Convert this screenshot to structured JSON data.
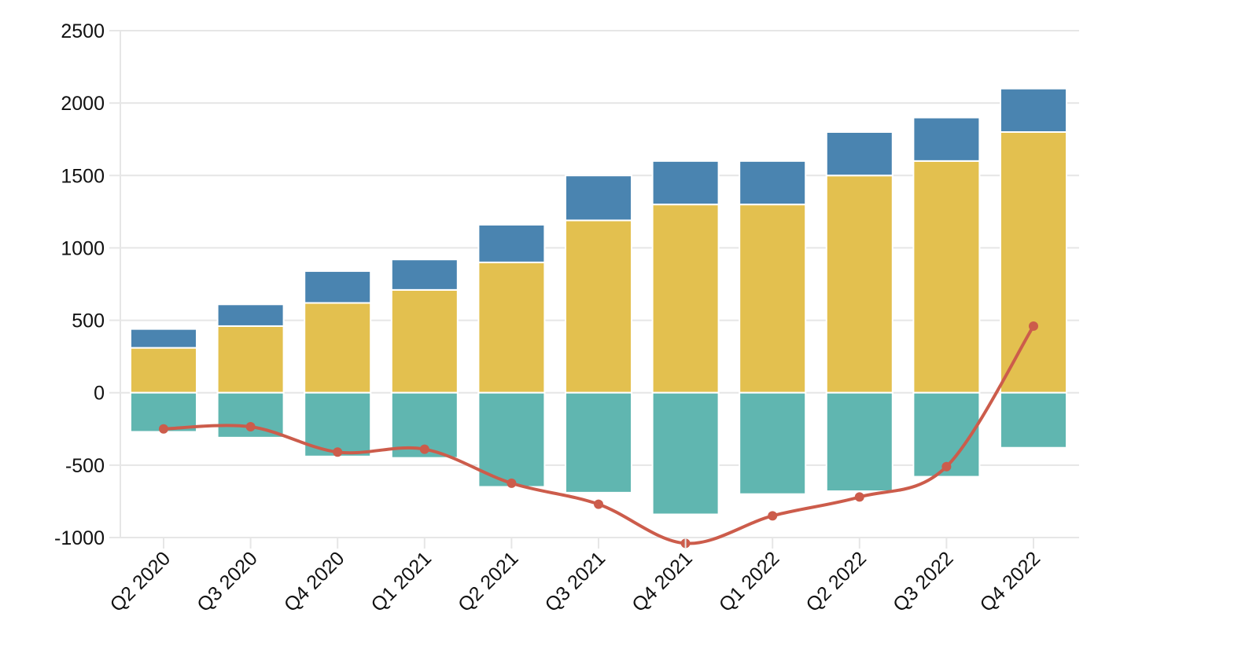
{
  "chart_data": {
    "type": "bar",
    "stacked": true,
    "title": "",
    "xlabel": "",
    "ylabel": "",
    "ylim": [
      -1000,
      2500
    ],
    "y_ticks": [
      "2500",
      "2000",
      "1500",
      "1000",
      "500",
      "0",
      "-500",
      "-1000"
    ],
    "y_tick_values": [
      2500,
      2000,
      1500,
      1000,
      500,
      0,
      -500,
      -1000
    ],
    "grid": true,
    "legend": "none",
    "categories": [
      "Q2 2020",
      "Q3 2020",
      "Q4 2020",
      "Q1 2021",
      "Q2 2021",
      "Q3 2021",
      "Q4 2021",
      "Q1 2022",
      "Q2 2022",
      "Q3 2022",
      "Q4 2022"
    ],
    "series": [
      {
        "kind": "bar",
        "stack": "positive",
        "color": "#e3c04f",
        "values": [
          310,
          460,
          620,
          710,
          900,
          1190,
          1300,
          1300,
          1500,
          1600,
          1800
        ]
      },
      {
        "kind": "bar",
        "stack": "positive",
        "color": "#4a84b0",
        "values": [
          130,
          150,
          220,
          210,
          260,
          310,
          300,
          300,
          300,
          300,
          300
        ]
      },
      {
        "kind": "bar",
        "stack": "negative",
        "color": "#60b6b0",
        "values": [
          -270,
          -310,
          -440,
          -450,
          -650,
          -690,
          -840,
          -700,
          -680,
          -580,
          -380
        ]
      },
      {
        "kind": "line",
        "color": "#cc5c4b",
        "values": [
          -250,
          -235,
          -410,
          -390,
          -625,
          -770,
          -1040,
          -850,
          -720,
          -510,
          460
        ]
      }
    ]
  }
}
